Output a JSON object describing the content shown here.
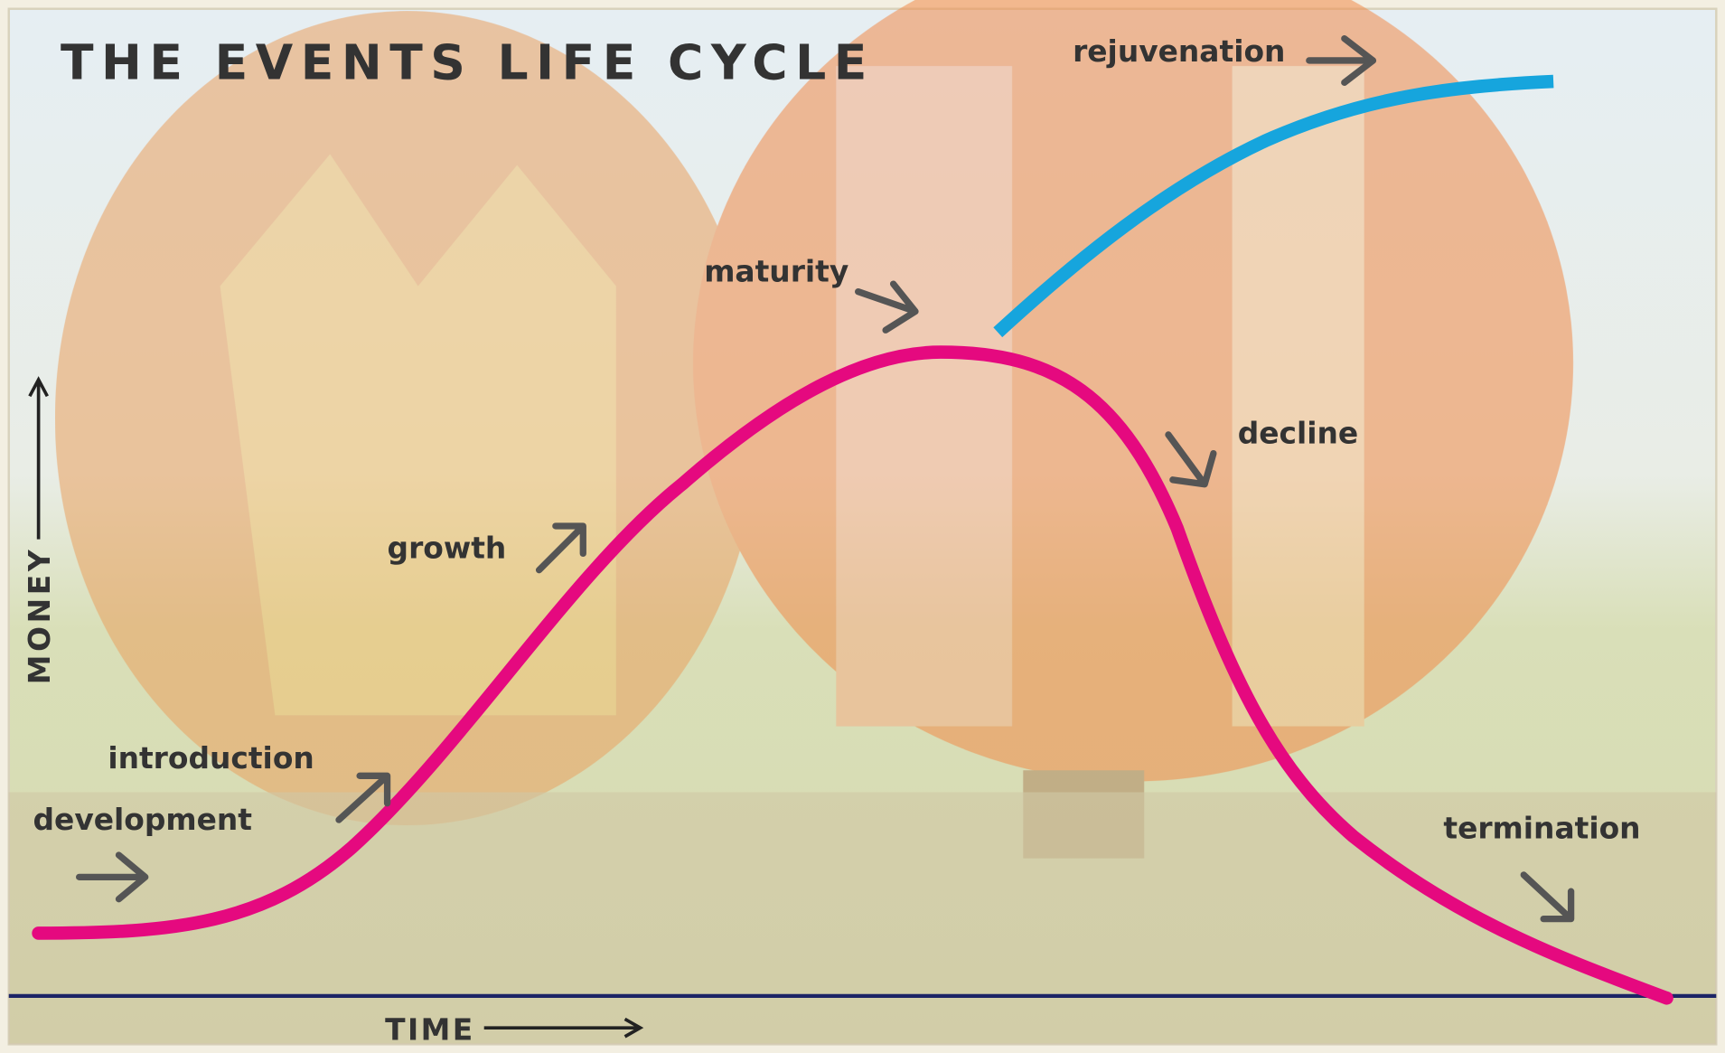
{
  "title": "THE EVENTS LIFE CYCLE",
  "axes": {
    "y": "MONEY",
    "x": "TIME"
  },
  "stages": [
    "development",
    "introduction",
    "growth",
    "maturity",
    "decline",
    "rejuvenation",
    "termination"
  ]
}
